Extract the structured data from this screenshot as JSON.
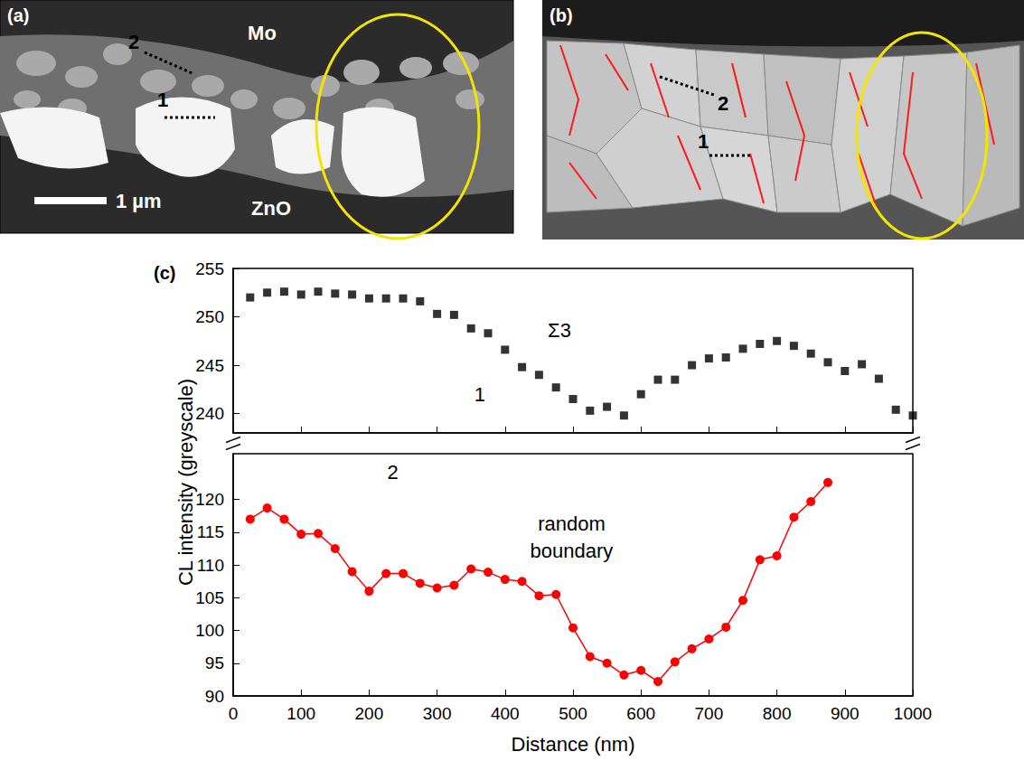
{
  "panel_a": {
    "label": "(a)",
    "top_layer": "Mo",
    "bottom_layer": "ZnO",
    "scale_bar": "1 µm",
    "mark_1": "1",
    "mark_2": "2"
  },
  "panel_b": {
    "label": "(b)",
    "mark_1": "1",
    "mark_2": "2"
  },
  "chart_data": {
    "type": "line",
    "label": "(c)",
    "xlabel": "Distance (nm)",
    "ylabel": "CL intensity (greyscale)",
    "xlim": [
      0,
      1000
    ],
    "xticks": [
      0,
      100,
      200,
      300,
      400,
      500,
      600,
      700,
      800,
      900,
      1000
    ],
    "grid": false,
    "panels": [
      {
        "ylim": [
          238,
          255
        ],
        "yticks": [
          240,
          245,
          250,
          255
        ],
        "annotations": [
          {
            "text": "Σ3",
            "x": 480,
            "y": 248.6,
            "color": "#000000"
          },
          {
            "text": "1",
            "x": 363,
            "y": 242,
            "color": "#000000"
          }
        ],
        "series": [
          {
            "name": "1",
            "type": "scatter",
            "marker": "square",
            "color": "#000000",
            "x": [
              25,
              50,
              75,
              100,
              125,
              150,
              175,
              200,
              225,
              250,
              275,
              300,
              325,
              350,
              375,
              400,
              425,
              450,
              475,
              500,
              525,
              550,
              575,
              600,
              625,
              650,
              675,
              700,
              725,
              750,
              775,
              800,
              825,
              850,
              875,
              900,
              925,
              950,
              975,
              1000
            ],
            "values": [
              252,
              252.5,
              252.6,
              252.3,
              252.6,
              252.4,
              252.3,
              251.9,
              251.9,
              251.9,
              251.6,
              250.3,
              250.2,
              248.8,
              248.3,
              246.6,
              244.8,
              244,
              242.7,
              241.5,
              240.3,
              240.7,
              239.8,
              242,
              243.5,
              243.5,
              245,
              245.7,
              245.8,
              246.7,
              247.2,
              247.5,
              247,
              246.2,
              245.3,
              244.4,
              245.1,
              243.6,
              240.4,
              239.8
            ]
          }
        ]
      },
      {
        "ylim": [
          90,
          127
        ],
        "yticks": [
          90,
          95,
          100,
          105,
          110,
          115,
          120
        ],
        "annotations": [
          {
            "text": "2",
            "x": 235,
            "y": 124.2,
            "color": "#000000"
          },
          {
            "text": "random boundary",
            "x": 498,
            "y": 114.2,
            "color": "#000000"
          }
        ],
        "series": [
          {
            "name": "2",
            "type": "line",
            "marker": "circle",
            "line_style": "solid",
            "color": "#ff0000",
            "x": [
              25,
              50,
              75,
              100,
              125,
              150,
              175,
              200,
              225,
              250,
              275,
              300,
              325,
              350,
              375,
              400,
              425,
              450,
              475,
              500,
              525,
              550,
              575,
              600,
              625,
              650,
              675,
              700,
              725,
              750,
              775,
              800,
              825,
              850,
              875
            ],
            "values": [
              117,
              118.7,
              117,
              114.7,
              114.8,
              112.5,
              109,
              106,
              108.7,
              108.7,
              107.2,
              106.5,
              106.9,
              109.4,
              108.9,
              107.8,
              107.5,
              105.3,
              105.5,
              100.4,
              96,
              95,
              93.2,
              93.9,
              92.2,
              95.2,
              97.2,
              98.7,
              100.5,
              104.6,
              110.8,
              111.4,
              117.3,
              119.7,
              122.6
            ]
          }
        ]
      }
    ]
  }
}
